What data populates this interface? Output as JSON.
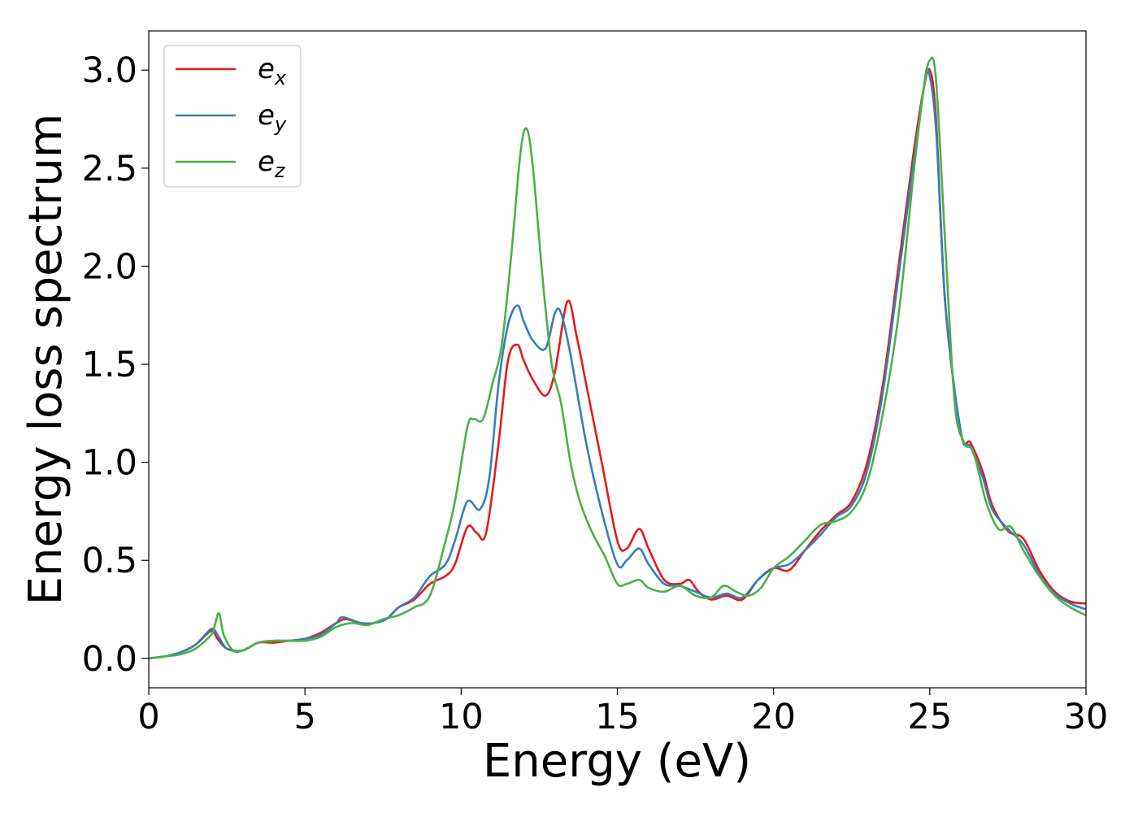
{
  "chart_data": {
    "type": "line",
    "title": "",
    "xlabel": "Energy (eV)",
    "ylabel": "Energy loss spectrum",
    "xlim": [
      0,
      30
    ],
    "ylim": [
      -0.15,
      3.2
    ],
    "xticks": [
      0,
      5,
      10,
      15,
      20,
      25,
      30
    ],
    "xtick_labels": [
      "0",
      "5",
      "10",
      "15",
      "20",
      "25",
      "30"
    ],
    "yticks": [
      0.0,
      0.5,
      1.0,
      1.5,
      2.0,
      2.5,
      3.0
    ],
    "ytick_labels": [
      "0.0",
      "0.5",
      "1.0",
      "1.5",
      "2.0",
      "2.5",
      "3.0"
    ],
    "grid": false,
    "legend_position": "top-left",
    "series": [
      {
        "name": "e",
        "subscript": "x",
        "color": "#e41a1c",
        "x": [
          0,
          0.5,
          1,
          1.5,
          2,
          2.2,
          2.5,
          3,
          3.5,
          4,
          4.5,
          5,
          5.5,
          6,
          6.3,
          6.8,
          7.2,
          7.6,
          8,
          8.5,
          9,
          9.5,
          9.8,
          10.2,
          10.5,
          10.8,
          11.2,
          11.5,
          11.8,
          12,
          12.3,
          12.7,
          13,
          13.4,
          13.7,
          14,
          14.5,
          15,
          15.3,
          15.7,
          16,
          16.5,
          17,
          17.3,
          17.6,
          18,
          18.5,
          19,
          19.5,
          20,
          20.5,
          21,
          21.5,
          22,
          22.5,
          23,
          23.5,
          24,
          24.5,
          24.8,
          25,
          25.2,
          25.5,
          26,
          26.3,
          26.7,
          27,
          27.5,
          28,
          28.5,
          29,
          29.5,
          30
        ],
        "y": [
          0,
          0.01,
          0.03,
          0.07,
          0.14,
          0.1,
          0.05,
          0.04,
          0.08,
          0.08,
          0.09,
          0.1,
          0.13,
          0.18,
          0.2,
          0.18,
          0.18,
          0.2,
          0.26,
          0.3,
          0.38,
          0.42,
          0.48,
          0.67,
          0.64,
          0.64,
          1.1,
          1.52,
          1.6,
          1.52,
          1.42,
          1.34,
          1.46,
          1.82,
          1.64,
          1.4,
          1.0,
          0.6,
          0.56,
          0.66,
          0.56,
          0.4,
          0.38,
          0.4,
          0.34,
          0.3,
          0.32,
          0.3,
          0.4,
          0.46,
          0.45,
          0.55,
          0.65,
          0.73,
          0.8,
          1.0,
          1.4,
          2.0,
          2.6,
          2.9,
          3.0,
          2.75,
          1.8,
          1.15,
          1.1,
          0.95,
          0.78,
          0.65,
          0.61,
          0.45,
          0.34,
          0.29,
          0.28
        ]
      },
      {
        "name": "e",
        "subscript": "y",
        "color": "#377eb8",
        "x": [
          0,
          0.5,
          1,
          1.5,
          2,
          2.2,
          2.5,
          3,
          3.5,
          4,
          4.5,
          5,
          5.5,
          6,
          6.2,
          6.8,
          7.2,
          7.6,
          8,
          8.5,
          9,
          9.5,
          9.8,
          10.2,
          10.6,
          10.9,
          11.2,
          11.5,
          11.8,
          12,
          12.3,
          12.7,
          13,
          13.2,
          13.5,
          14,
          14.5,
          15,
          15.3,
          15.7,
          16,
          16.5,
          17,
          17.5,
          18,
          18.5,
          19,
          19.5,
          20,
          20.5,
          21,
          21.5,
          22,
          22.5,
          23,
          23.5,
          24,
          24.5,
          24.8,
          24.95,
          25.2,
          25.5,
          26,
          26.3,
          26.7,
          27,
          27.5,
          28,
          28.5,
          29,
          29.5,
          30
        ],
        "y": [
          0,
          0.01,
          0.03,
          0.07,
          0.15,
          0.12,
          0.05,
          0.04,
          0.08,
          0.09,
          0.09,
          0.1,
          0.12,
          0.18,
          0.21,
          0.18,
          0.18,
          0.2,
          0.26,
          0.31,
          0.42,
          0.48,
          0.6,
          0.8,
          0.76,
          0.92,
          1.4,
          1.7,
          1.8,
          1.72,
          1.62,
          1.58,
          1.76,
          1.76,
          1.55,
          1.1,
          0.75,
          0.48,
          0.5,
          0.56,
          0.48,
          0.38,
          0.37,
          0.34,
          0.31,
          0.33,
          0.31,
          0.4,
          0.46,
          0.48,
          0.55,
          0.63,
          0.72,
          0.78,
          0.96,
          1.36,
          1.95,
          2.55,
          2.9,
          3.0,
          2.7,
          1.8,
          1.15,
          1.08,
          0.92,
          0.76,
          0.66,
          0.58,
          0.43,
          0.33,
          0.28,
          0.25
        ]
      },
      {
        "name": "e",
        "subscript": "z",
        "color": "#4daf4a",
        "x": [
          0,
          0.5,
          1,
          1.5,
          2,
          2.1,
          2.25,
          2.4,
          2.7,
          3,
          3.5,
          4,
          4.5,
          5,
          5.5,
          6,
          6.5,
          7,
          7.5,
          8,
          8.5,
          9,
          9.5,
          9.8,
          10.2,
          10.4,
          10.7,
          11,
          11.3,
          11.6,
          11.9,
          12.1,
          12.3,
          12.6,
          12.9,
          13.2,
          13.5,
          13.8,
          14.2,
          14.6,
          15,
          15.3,
          15.7,
          16,
          16.5,
          17,
          17.5,
          18,
          18.4,
          18.8,
          19.2,
          19.6,
          20,
          20.5,
          21,
          21.5,
          22,
          22.5,
          23,
          23.5,
          24,
          24.5,
          24.8,
          25,
          25.2,
          25.5,
          25.8,
          26.1,
          26.4,
          26.8,
          27.2,
          27.6,
          28,
          28.5,
          29,
          29.5,
          30
        ],
        "y": [
          0,
          0.01,
          0.02,
          0.05,
          0.12,
          0.16,
          0.23,
          0.12,
          0.04,
          0.04,
          0.08,
          0.09,
          0.09,
          0.09,
          0.11,
          0.16,
          0.18,
          0.17,
          0.2,
          0.22,
          0.26,
          0.32,
          0.6,
          0.8,
          1.18,
          1.22,
          1.22,
          1.4,
          1.6,
          2.05,
          2.58,
          2.7,
          2.5,
          1.95,
          1.5,
          1.3,
          1.0,
          0.8,
          0.64,
          0.52,
          0.38,
          0.38,
          0.4,
          0.36,
          0.34,
          0.37,
          0.32,
          0.31,
          0.37,
          0.34,
          0.32,
          0.36,
          0.46,
          0.52,
          0.6,
          0.68,
          0.7,
          0.75,
          0.9,
          1.25,
          1.75,
          2.5,
          2.9,
          3.05,
          2.95,
          2.1,
          1.3,
          1.1,
          1.05,
          0.8,
          0.66,
          0.67,
          0.55,
          0.42,
          0.32,
          0.26,
          0.22
        ]
      }
    ]
  }
}
